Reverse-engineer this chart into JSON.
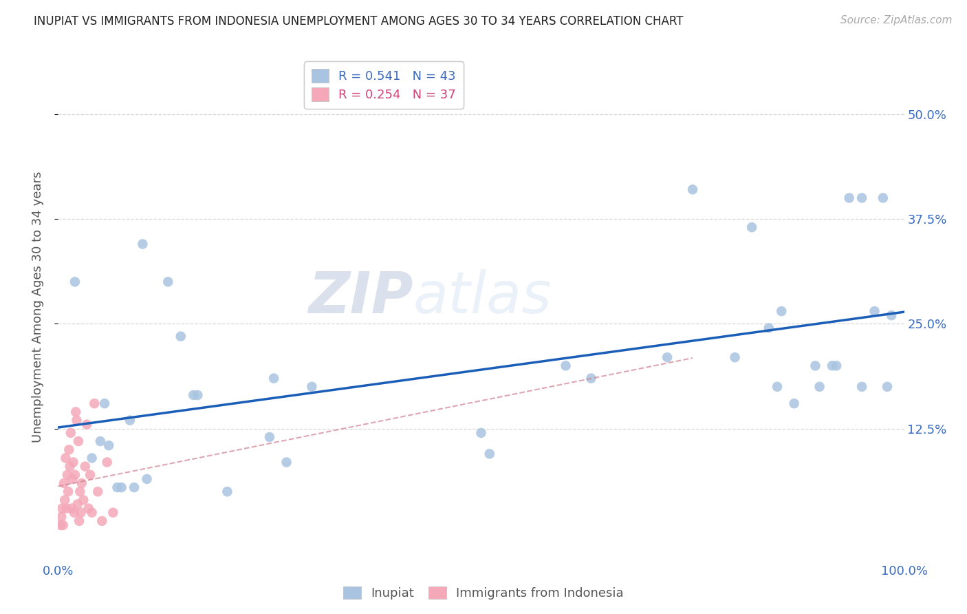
{
  "title": "INUPIAT VS IMMIGRANTS FROM INDONESIA UNEMPLOYMENT AMONG AGES 30 TO 34 YEARS CORRELATION CHART",
  "source": "Source: ZipAtlas.com",
  "ylabel": "Unemployment Among Ages 30 to 34 years",
  "ytick_labels": [
    "12.5%",
    "25.0%",
    "37.5%",
    "50.0%"
  ],
  "ytick_values": [
    0.125,
    0.25,
    0.375,
    0.5
  ],
  "xlim": [
    0.0,
    1.0
  ],
  "ylim": [
    -0.03,
    0.57
  ],
  "legend_r1": "R = 0.541   N = 43",
  "legend_r2": "R = 0.254   N = 37",
  "legend_label1": "Inupiat",
  "legend_label2": "Immigrants from Indonesia",
  "inupiat_color": "#a8c4e0",
  "indonesia_color": "#f4a8b8",
  "trendline_blue": "#1a5eb8",
  "trendline_pink": "#d08090",
  "watermark_zip": "ZIP",
  "watermark_atlas": "atlas",
  "inupiat_x": [
    0.02,
    0.04,
    0.05,
    0.055,
    0.06,
    0.07,
    0.075,
    0.085,
    0.09,
    0.1,
    0.105,
    0.13,
    0.145,
    0.16,
    0.165,
    0.2,
    0.25,
    0.255,
    0.27,
    0.3,
    0.5,
    0.51,
    0.6,
    0.63,
    0.72,
    0.75,
    0.8,
    0.82,
    0.84,
    0.855,
    0.87,
    0.895,
    0.915,
    0.935,
    0.95,
    0.965,
    0.975,
    0.985,
    0.85,
    0.9,
    0.92,
    0.95,
    0.98
  ],
  "inupiat_y": [
    0.3,
    0.09,
    0.11,
    0.155,
    0.105,
    0.055,
    0.055,
    0.135,
    0.055,
    0.345,
    0.065,
    0.3,
    0.235,
    0.165,
    0.165,
    0.05,
    0.115,
    0.185,
    0.085,
    0.175,
    0.12,
    0.095,
    0.2,
    0.185,
    0.21,
    0.41,
    0.21,
    0.365,
    0.245,
    0.265,
    0.155,
    0.2,
    0.2,
    0.4,
    0.4,
    0.265,
    0.4,
    0.26,
    0.175,
    0.175,
    0.2,
    0.175,
    0.175
  ],
  "indonesia_x": [
    0.003,
    0.004,
    0.005,
    0.006,
    0.007,
    0.008,
    0.009,
    0.01,
    0.011,
    0.012,
    0.013,
    0.014,
    0.015,
    0.016,
    0.017,
    0.018,
    0.019,
    0.02,
    0.021,
    0.022,
    0.023,
    0.024,
    0.025,
    0.026,
    0.027,
    0.028,
    0.03,
    0.032,
    0.034,
    0.036,
    0.038,
    0.04,
    0.043,
    0.047,
    0.052,
    0.058,
    0.065
  ],
  "indonesia_y": [
    0.01,
    0.02,
    0.03,
    0.01,
    0.06,
    0.04,
    0.09,
    0.03,
    0.07,
    0.05,
    0.1,
    0.08,
    0.12,
    0.03,
    0.065,
    0.085,
    0.025,
    0.07,
    0.145,
    0.135,
    0.035,
    0.11,
    0.015,
    0.05,
    0.025,
    0.06,
    0.04,
    0.08,
    0.13,
    0.03,
    0.07,
    0.025,
    0.155,
    0.05,
    0.015,
    0.085,
    0.025
  ]
}
